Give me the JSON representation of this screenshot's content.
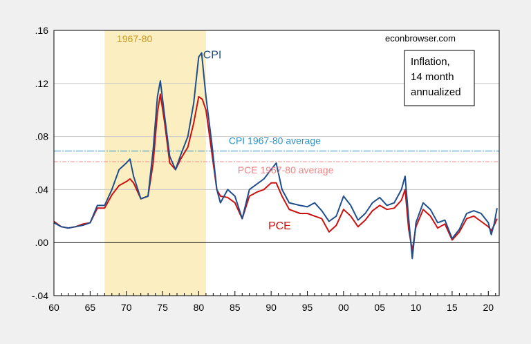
{
  "chart_data": {
    "type": "line",
    "title": "",
    "source": "econbrowser.com",
    "legend_box": [
      "Inflation,",
      "14 month",
      "annualized"
    ],
    "ylim": [
      -0.04,
      0.16
    ],
    "y_ticks": [
      -0.04,
      0.0,
      0.04,
      0.08,
      0.12,
      0.16
    ],
    "y_tick_labels": [
      "-.04",
      ".00",
      ".04",
      ".08",
      ".12",
      ".16"
    ],
    "xlim": [
      1960,
      2021.5
    ],
    "x_ticks": [
      1960,
      1965,
      1970,
      1975,
      1980,
      1985,
      1990,
      1995,
      2000,
      2005,
      2010,
      2015,
      2020
    ],
    "x_tick_labels": [
      "60",
      "65",
      "70",
      "75",
      "80",
      "85",
      "90",
      "95",
      "00",
      "05",
      "10",
      "15",
      "20"
    ],
    "shaded_region": {
      "start": 1967,
      "end": 1981,
      "label": "1967-80",
      "color": "#fbeec0",
      "label_color": "#c8961e"
    },
    "reference_lines": [
      {
        "name": "CPI 1967-80 average",
        "value": 0.069,
        "color": "#2f93c8"
      },
      {
        "name": "PCE 1967-80 average",
        "value": 0.061,
        "color": "#f08585"
      }
    ],
    "series": [
      {
        "name": "CPI",
        "color": "#1f4e8c",
        "points": [
          [
            1960.0,
            0.015
          ],
          [
            1961.0,
            0.012
          ],
          [
            1962.0,
            0.011
          ],
          [
            1963.0,
            0.012
          ],
          [
            1964.0,
            0.013
          ],
          [
            1965.0,
            0.015
          ],
          [
            1966.0,
            0.028
          ],
          [
            1967.0,
            0.028
          ],
          [
            1968.0,
            0.04
          ],
          [
            1969.0,
            0.055
          ],
          [
            1970.0,
            0.06
          ],
          [
            1970.5,
            0.063
          ],
          [
            1971.0,
            0.05
          ],
          [
            1972.0,
            0.033
          ],
          [
            1973.0,
            0.035
          ],
          [
            1973.7,
            0.07
          ],
          [
            1974.3,
            0.11
          ],
          [
            1974.7,
            0.122
          ],
          [
            1975.3,
            0.095
          ],
          [
            1976.0,
            0.065
          ],
          [
            1976.8,
            0.055
          ],
          [
            1977.5,
            0.066
          ],
          [
            1978.5,
            0.08
          ],
          [
            1979.3,
            0.105
          ],
          [
            1980.0,
            0.14
          ],
          [
            1980.4,
            0.143
          ],
          [
            1981.0,
            0.11
          ],
          [
            1981.8,
            0.075
          ],
          [
            1982.5,
            0.04
          ],
          [
            1983.0,
            0.03
          ],
          [
            1984.0,
            0.04
          ],
          [
            1985.0,
            0.035
          ],
          [
            1986.0,
            0.018
          ],
          [
            1987.0,
            0.04
          ],
          [
            1988.0,
            0.044
          ],
          [
            1989.0,
            0.048
          ],
          [
            1990.0,
            0.055
          ],
          [
            1990.7,
            0.06
          ],
          [
            1991.5,
            0.04
          ],
          [
            1992.5,
            0.03
          ],
          [
            1994.0,
            0.028
          ],
          [
            1995.0,
            0.027
          ],
          [
            1996.0,
            0.03
          ],
          [
            1997.0,
            0.024
          ],
          [
            1998.0,
            0.016
          ],
          [
            1999.0,
            0.02
          ],
          [
            2000.0,
            0.035
          ],
          [
            2001.0,
            0.028
          ],
          [
            2002.0,
            0.017
          ],
          [
            2003.0,
            0.022
          ],
          [
            2004.0,
            0.03
          ],
          [
            2005.0,
            0.034
          ],
          [
            2006.0,
            0.028
          ],
          [
            2007.0,
            0.03
          ],
          [
            2008.0,
            0.04
          ],
          [
            2008.5,
            0.05
          ],
          [
            2009.0,
            0.018
          ],
          [
            2009.5,
            -0.012
          ],
          [
            2010.0,
            0.015
          ],
          [
            2011.0,
            0.03
          ],
          [
            2012.0,
            0.025
          ],
          [
            2013.0,
            0.015
          ],
          [
            2014.0,
            0.017
          ],
          [
            2015.0,
            0.003
          ],
          [
            2016.0,
            0.01
          ],
          [
            2017.0,
            0.022
          ],
          [
            2018.0,
            0.024
          ],
          [
            2019.0,
            0.022
          ],
          [
            2020.0,
            0.015
          ],
          [
            2020.4,
            0.006
          ],
          [
            2020.8,
            0.014
          ],
          [
            2021.2,
            0.026
          ]
        ]
      },
      {
        "name": "PCE",
        "color": "#cc1010",
        "points": [
          [
            1960.0,
            0.016
          ],
          [
            1961.0,
            0.012
          ],
          [
            1962.0,
            0.011
          ],
          [
            1963.0,
            0.012
          ],
          [
            1964.0,
            0.014
          ],
          [
            1965.0,
            0.015
          ],
          [
            1966.0,
            0.026
          ],
          [
            1967.0,
            0.026
          ],
          [
            1968.0,
            0.036
          ],
          [
            1969.0,
            0.043
          ],
          [
            1970.0,
            0.046
          ],
          [
            1970.5,
            0.048
          ],
          [
            1971.0,
            0.045
          ],
          [
            1972.0,
            0.033
          ],
          [
            1973.0,
            0.035
          ],
          [
            1973.7,
            0.06
          ],
          [
            1974.3,
            0.098
          ],
          [
            1974.7,
            0.112
          ],
          [
            1975.3,
            0.09
          ],
          [
            1976.0,
            0.06
          ],
          [
            1976.8,
            0.055
          ],
          [
            1977.5,
            0.063
          ],
          [
            1978.5,
            0.072
          ],
          [
            1979.3,
            0.09
          ],
          [
            1980.0,
            0.11
          ],
          [
            1980.5,
            0.108
          ],
          [
            1981.0,
            0.1
          ],
          [
            1981.8,
            0.068
          ],
          [
            1982.5,
            0.04
          ],
          [
            1983.0,
            0.035
          ],
          [
            1984.0,
            0.034
          ],
          [
            1985.0,
            0.03
          ],
          [
            1986.0,
            0.018
          ],
          [
            1987.0,
            0.035
          ],
          [
            1988.0,
            0.038
          ],
          [
            1989.0,
            0.04
          ],
          [
            1990.0,
            0.045
          ],
          [
            1990.7,
            0.045
          ],
          [
            1991.5,
            0.035
          ],
          [
            1992.5,
            0.025
          ],
          [
            1994.0,
            0.022
          ],
          [
            1995.0,
            0.022
          ],
          [
            1996.0,
            0.02
          ],
          [
            1997.0,
            0.018
          ],
          [
            1998.0,
            0.008
          ],
          [
            1999.0,
            0.013
          ],
          [
            2000.0,
            0.025
          ],
          [
            2001.0,
            0.02
          ],
          [
            2002.0,
            0.012
          ],
          [
            2003.0,
            0.017
          ],
          [
            2004.0,
            0.024
          ],
          [
            2005.0,
            0.028
          ],
          [
            2006.0,
            0.025
          ],
          [
            2007.0,
            0.026
          ],
          [
            2008.0,
            0.032
          ],
          [
            2008.5,
            0.04
          ],
          [
            2009.0,
            0.01
          ],
          [
            2009.5,
            -0.006
          ],
          [
            2010.0,
            0.012
          ],
          [
            2011.0,
            0.025
          ],
          [
            2012.0,
            0.02
          ],
          [
            2013.0,
            0.011
          ],
          [
            2014.0,
            0.014
          ],
          [
            2015.0,
            0.002
          ],
          [
            2016.0,
            0.008
          ],
          [
            2017.0,
            0.018
          ],
          [
            2018.0,
            0.02
          ],
          [
            2019.0,
            0.016
          ],
          [
            2020.0,
            0.012
          ],
          [
            2020.4,
            0.009
          ],
          [
            2020.8,
            0.013
          ],
          [
            2021.2,
            0.018
          ]
        ]
      }
    ],
    "series_labels": [
      {
        "text": "CPI",
        "x": 1980.6,
        "y": 0.139,
        "color": "#1f4e8c"
      },
      {
        "text": "PCE",
        "x": 1989.6,
        "y": 0.01,
        "color": "#cc1010"
      }
    ],
    "grid": true
  }
}
